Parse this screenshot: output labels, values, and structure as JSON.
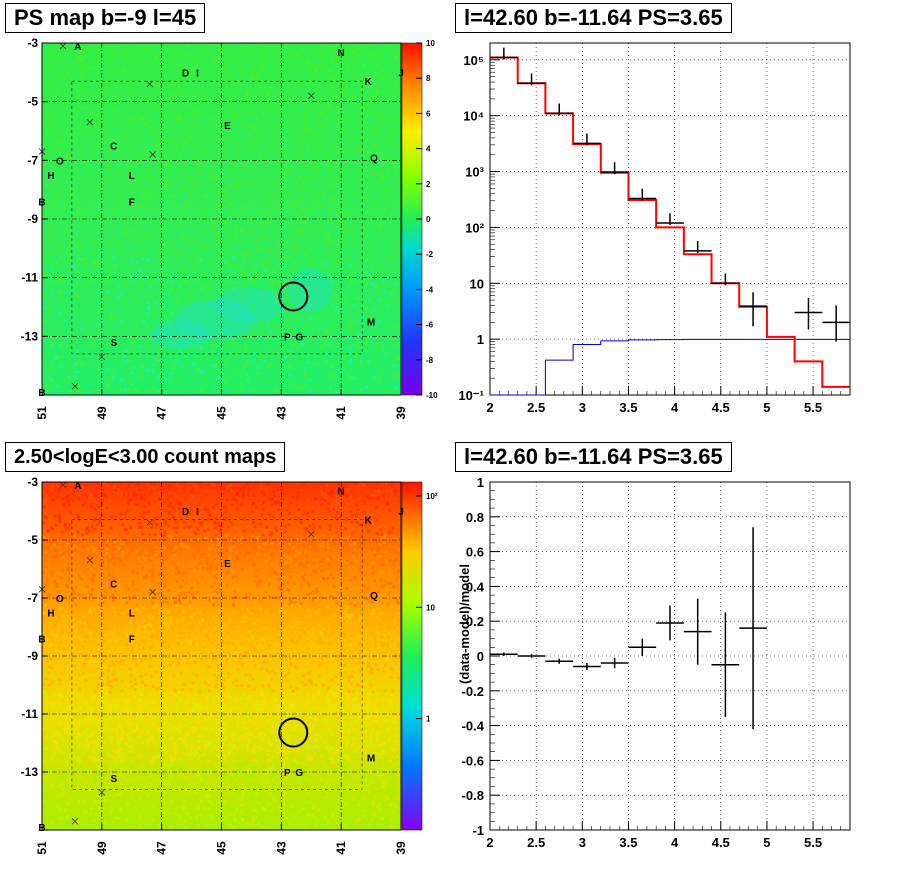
{
  "panels": {
    "tl_title": "PS map b=-9 l=45",
    "tr_title": "l=42.60 b=-11.64 PS=3.65",
    "bl_title": "2.50<logE<3.00 count maps",
    "br_title": "l=42.60 b=-11.64 PS=3.65"
  },
  "maps": {
    "x_ticks": [
      "51",
      "49",
      "47",
      "45",
      "43",
      "41",
      "39"
    ],
    "y_ticks": [
      "-3",
      "-5",
      "-7",
      "-9",
      "-11",
      "-13"
    ],
    "tl_colorbar_ticks": [
      "10",
      "8",
      "6",
      "4",
      "2",
      "0",
      "-2",
      "-4",
      "-6",
      "-8",
      "-10"
    ],
    "bl_colorbar_ticks": [
      "10²",
      "10",
      "1"
    ],
    "circle_center": {
      "l": 42.6,
      "b": -11.64
    },
    "source_labels": [
      {
        "t": "A",
        "l": 49.8,
        "b": -3.1
      },
      {
        "t": "N",
        "l": 41.0,
        "b": -3.3
      },
      {
        "t": "D",
        "l": 46.2,
        "b": -4.0
      },
      {
        "t": "I",
        "l": 45.8,
        "b": -4.0
      },
      {
        "t": "K",
        "l": 40.1,
        "b": -4.3
      },
      {
        "t": "J",
        "l": 39.0,
        "b": -4.0
      },
      {
        "t": "E",
        "l": 44.8,
        "b": -5.8
      },
      {
        "t": "C",
        "l": 48.6,
        "b": -6.5
      },
      {
        "t": "O",
        "l": 50.4,
        "b": -7.0
      },
      {
        "t": "Q",
        "l": 39.9,
        "b": -6.9
      },
      {
        "t": "H",
        "l": 50.7,
        "b": -7.5
      },
      {
        "t": "L",
        "l": 48.0,
        "b": -7.5
      },
      {
        "t": "B",
        "l": 51.0,
        "b": -8.4
      },
      {
        "t": "F",
        "l": 48.0,
        "b": -8.4
      },
      {
        "t": "M",
        "l": 40.0,
        "b": -12.5
      },
      {
        "t": "S",
        "l": 48.6,
        "b": -13.2
      },
      {
        "t": "P",
        "l": 42.8,
        "b": -13.0
      },
      {
        "t": "G",
        "l": 42.4,
        "b": -13.0
      },
      {
        "t": "B",
        "l": 51.0,
        "b": -14.9
      }
    ],
    "cross_markers": [
      {
        "l": 50.3,
        "b": -3.1
      },
      {
        "l": 47.4,
        "b": -4.4
      },
      {
        "l": 42.0,
        "b": -4.8
      },
      {
        "l": 49.4,
        "b": -5.7
      },
      {
        "l": 47.3,
        "b": -6.8
      },
      {
        "l": 51.0,
        "b": -6.7
      },
      {
        "l": 49.0,
        "b": -13.7
      },
      {
        "l": 49.9,
        "b": -14.7
      }
    ]
  },
  "colors": {
    "data": "#000000",
    "model": "#ff0000",
    "background_model": "#0000cc",
    "grid": "#000000"
  },
  "chart_data": [
    {
      "type": "line",
      "title": "l=42.60 b=-11.64 PS=3.65",
      "xlabel": "",
      "ylabel": "",
      "log_y": true,
      "xlim": [
        2,
        5.9
      ],
      "ylim": [
        0.1,
        200000
      ],
      "x_ticks": [
        "2",
        "2.5",
        "3",
        "3.5",
        "4",
        "4.5",
        "5",
        "5.5"
      ],
      "y_ticks": [
        "10⁻¹",
        "1",
        "10",
        "10²",
        "10³",
        "10⁴",
        "10⁵"
      ],
      "bin_edges": [
        2.0,
        2.3,
        2.6,
        2.9,
        3.2,
        3.5,
        3.8,
        4.1,
        4.4,
        4.7,
        5.0,
        5.3,
        5.6,
        5.9
      ],
      "series": [
        {
          "name": "",
          "style": "red-step",
          "values": [
            110000,
            38000,
            11000,
            3100,
            950,
            310,
            100,
            33,
            10,
            3.8,
            1.1,
            0.4,
            0.14
          ]
        },
        {
          "name": "",
          "style": "blue-step",
          "values": [
            0.1,
            0.1,
            0.42,
            0.8,
            0.93,
            0.97,
            0.98,
            0.99,
            0.99,
            0.99,
            0.99,
            0.99,
            0.99
          ]
        },
        {
          "name": "",
          "style": "data-points",
          "x": [
            2.15,
            2.45,
            2.75,
            3.05,
            3.35,
            3.65,
            3.95,
            4.25,
            4.55,
            4.85,
            5.45,
            5.75
          ],
          "y": [
            110000,
            38000,
            11000,
            3200,
            980,
            330,
            120,
            38,
            10,
            3.9,
            3,
            2
          ],
          "xerr": 0.15,
          "yerr_low": [
            110000,
            38000,
            11000,
            3200,
            980,
            330,
            120,
            38,
            10,
            2.2,
            1.5,
            1.1
          ],
          "yerr_high": [
            110000,
            38000,
            11000,
            3200,
            980,
            330,
            120,
            38,
            10,
            6.0,
            5.0,
            4.0
          ]
        }
      ]
    },
    {
      "type": "scatter",
      "title": "l=42.60 b=-11.64 PS=3.65",
      "xlabel": "",
      "ylabel": "(data-model)/model",
      "xlim": [
        2,
        5.9
      ],
      "ylim": [
        -1,
        1
      ],
      "x_ticks": [
        "2",
        "2.5",
        "3",
        "3.5",
        "4",
        "4.5",
        "5",
        "5.5"
      ],
      "y_ticks": [
        "1",
        "0.8",
        "0.6",
        "0.4",
        "0.2",
        "0",
        "-0.2",
        "-0.4",
        "-0.6",
        "-0.8",
        "-1"
      ],
      "series": [
        {
          "name": "",
          "x": [
            2.15,
            2.45,
            2.75,
            3.05,
            3.35,
            3.65,
            3.95,
            4.25,
            4.55,
            4.85
          ],
          "y": [
            0.01,
            0.0,
            -0.03,
            -0.06,
            -0.04,
            0.05,
            0.19,
            0.14,
            -0.05,
            0.16
          ],
          "xerr": 0.15,
          "yerr": [
            0.01,
            0.01,
            0.015,
            0.02,
            0.03,
            0.05,
            0.1,
            0.19,
            0.3,
            0.58
          ]
        }
      ]
    }
  ]
}
